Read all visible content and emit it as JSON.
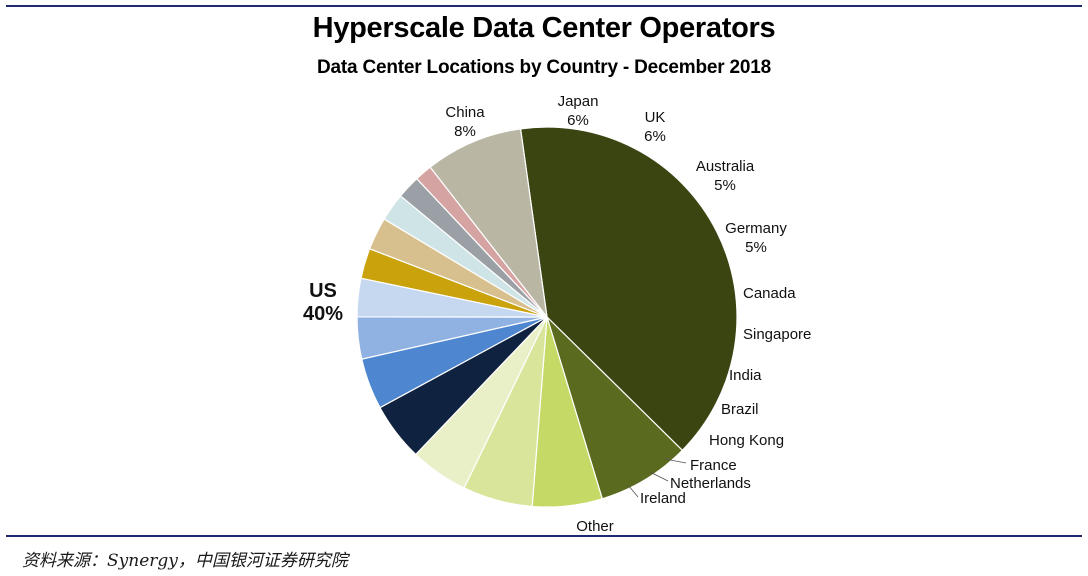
{
  "chart_data": {
    "type": "pie",
    "title": "Hyperscale Data Center Operators",
    "subtitle": "Data Center Locations by Country - December 2018",
    "slices": [
      {
        "label": "US",
        "value": 40,
        "value_label": "40%",
        "color": "#3a4512"
      },
      {
        "label": "China",
        "value": 8,
        "value_label": "8%",
        "color": "#5a6a1e"
      },
      {
        "label": "Japan",
        "value": 6,
        "value_label": "6%",
        "color": "#c5d966"
      },
      {
        "label": "UK",
        "value": 6,
        "value_label": "6%",
        "color": "#d8e59a"
      },
      {
        "label": "Australia",
        "value": 5,
        "value_label": "5%",
        "color": "#e9efc6"
      },
      {
        "label": "Germany",
        "value": 5,
        "value_label": "5%",
        "color": "#0f2240"
      },
      {
        "label": "Canada",
        "value": 4.4,
        "value_label": "",
        "color": "#4f86d0"
      },
      {
        "label": "Singapore",
        "value": 3.6,
        "value_label": "",
        "color": "#8fb2e2"
      },
      {
        "label": "India",
        "value": 3.3,
        "value_label": "",
        "color": "#c6d8f0"
      },
      {
        "label": "Brazil",
        "value": 2.6,
        "value_label": "",
        "color": "#c9a20c"
      },
      {
        "label": "Hong Kong",
        "value": 2.8,
        "value_label": "",
        "color": "#d8c08e"
      },
      {
        "label": "France",
        "value": 2.4,
        "value_label": "",
        "color": "#cfe4e6"
      },
      {
        "label": "Netherlands",
        "value": 2.0,
        "value_label": "",
        "color": "#9aa0a6"
      },
      {
        "label": "Ireland",
        "value": 1.5,
        "value_label": "",
        "color": "#d6a3a3"
      },
      {
        "label": "Other",
        "value": 8.4,
        "value_label": "",
        "color": "#b9b7a4"
      }
    ]
  },
  "source_note": "资料来源：Synergy，中国银河证券研究院"
}
